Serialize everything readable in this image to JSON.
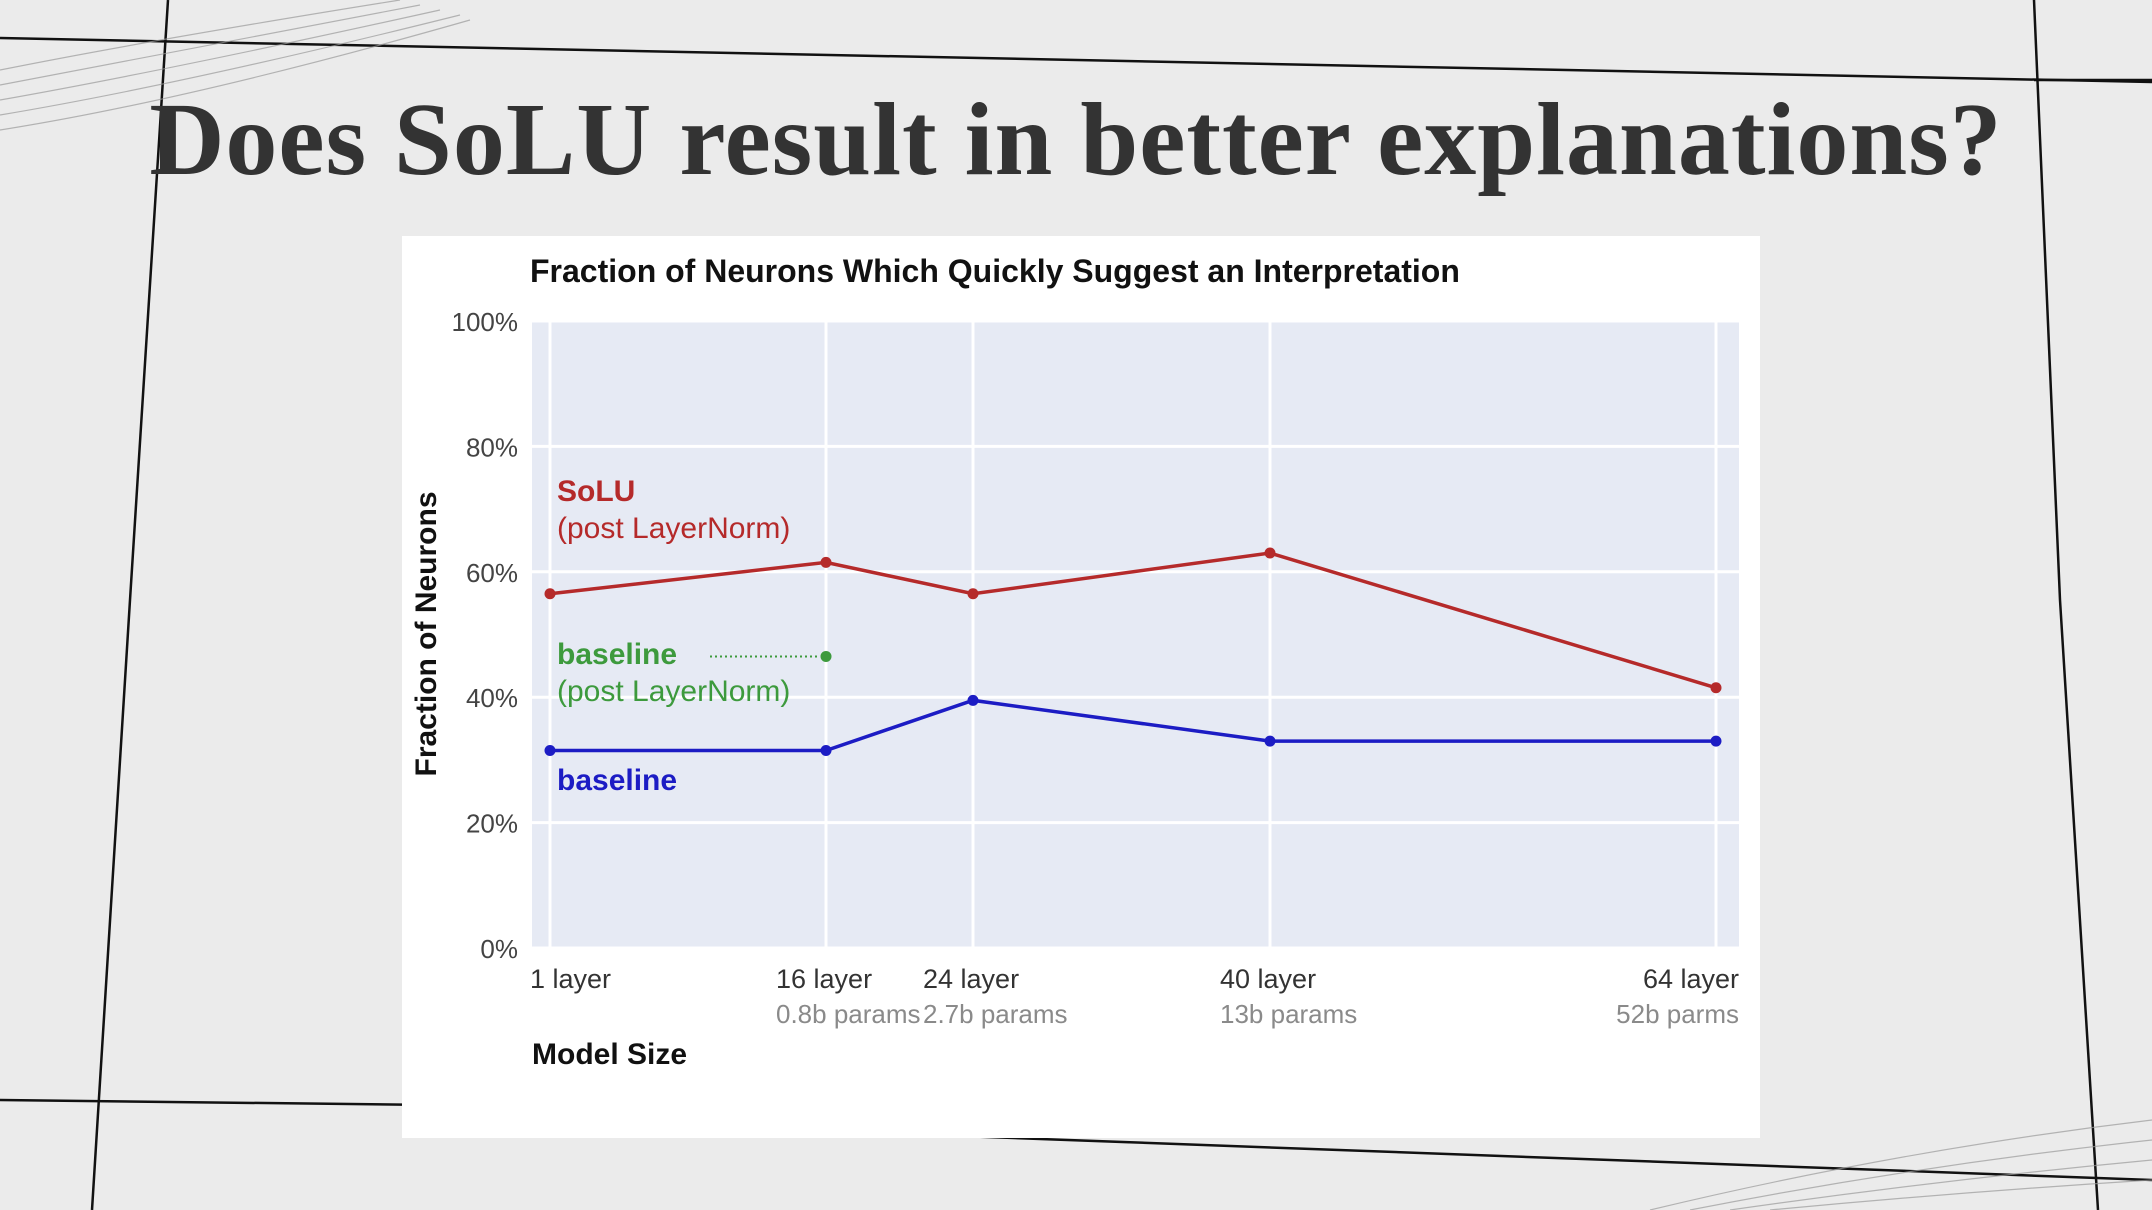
{
  "slide": {
    "title": "Does SoLU result in better explanations?"
  },
  "colors": {
    "background": "#ebebeb",
    "plot_area": "#e6eaf4",
    "solu": "#b52a2a",
    "baseline_post_layernorm": "#3d9a3d",
    "baseline": "#1c1cc4"
  },
  "chart_data": {
    "type": "line",
    "title": "Fraction of Neurons Which Quickly Suggest an Interpretation",
    "xlabel": "Model Size",
    "ylabel": "Fraction of Neurons",
    "ylim": [
      0,
      100
    ],
    "y_ticks": [
      "0%",
      "20%",
      "40%",
      "60%",
      "80%",
      "100%"
    ],
    "grid": true,
    "x_positions": [
      1,
      16,
      24,
      40,
      64
    ],
    "x_tick_labels": [
      {
        "label": "1 layer",
        "sublabel": ""
      },
      {
        "label": "16 layer",
        "sublabel": "0.8b params"
      },
      {
        "label": "24 layer",
        "sublabel": "2.7b params"
      },
      {
        "label": "40 layer",
        "sublabel": "13b params"
      },
      {
        "label": "64 layer",
        "sublabel": "52b parms"
      }
    ],
    "series": [
      {
        "name": "SoLU (post LayerNorm)",
        "label_lines": [
          "SoLU",
          "(post LayerNorm)"
        ],
        "color": "#b52a2a",
        "x": [
          1,
          16,
          24,
          40,
          64
        ],
        "values": [
          56.5,
          61.5,
          56.5,
          63,
          41.5
        ]
      },
      {
        "name": "baseline (post LayerNorm)",
        "label_lines": [
          "baseline",
          "(post LayerNorm)"
        ],
        "color": "#3d9a3d",
        "x": [
          16
        ],
        "values": [
          46.5
        ]
      },
      {
        "name": "baseline",
        "label_lines": [
          "baseline"
        ],
        "color": "#1c1cc4",
        "x": [
          1,
          16,
          24,
          40,
          64
        ],
        "values": [
          31.5,
          31.5,
          39.5,
          33,
          33
        ]
      }
    ]
  }
}
